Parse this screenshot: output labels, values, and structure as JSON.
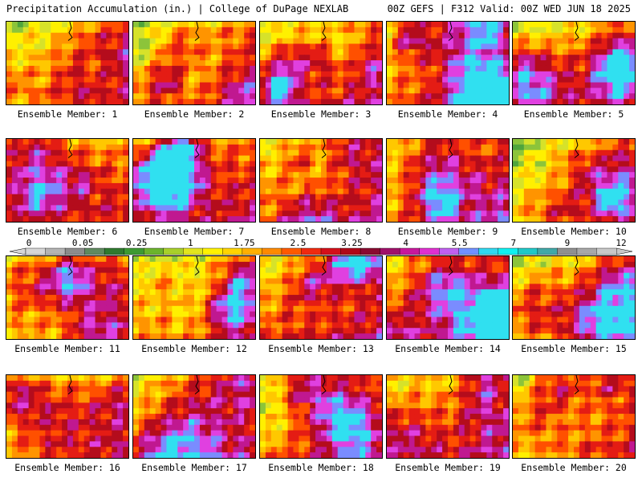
{
  "header": {
    "left": "Precipitation Accumulation (in.) | College of DuPage NEXLAB",
    "right": "00Z GEFS | F312 Valid: 00Z WED JUN 18 2025"
  },
  "members": [
    {
      "label": "Ensemble Member: 1"
    },
    {
      "label": "Ensemble Member: 2"
    },
    {
      "label": "Ensemble Member: 3"
    },
    {
      "label": "Ensemble Member: 4"
    },
    {
      "label": "Ensemble Member: 5"
    },
    {
      "label": "Ensemble Member: 6"
    },
    {
      "label": "Ensemble Member: 7"
    },
    {
      "label": "Ensemble Member: 8"
    },
    {
      "label": "Ensemble Member: 9"
    },
    {
      "label": "Ensemble Member: 10"
    },
    {
      "label": "Ensemble Member: 11"
    },
    {
      "label": "Ensemble Member: 12"
    },
    {
      "label": "Ensemble Member: 13"
    },
    {
      "label": "Ensemble Member: 14"
    },
    {
      "label": "Ensemble Member: 15"
    },
    {
      "label": "Ensemble Member: 16"
    },
    {
      "label": "Ensemble Member: 17"
    },
    {
      "label": "Ensemble Member: 18"
    },
    {
      "label": "Ensemble Member: 19"
    },
    {
      "label": "Ensemble Member: 20"
    }
  ],
  "colorbar": {
    "tick_labels": [
      "0",
      "0.05",
      "0.25",
      "1",
      "1.75",
      "2.5",
      "3.25",
      "4",
      "5.5",
      "7",
      "9",
      "12"
    ],
    "colors": [
      "#d6d6d6",
      "#b4b4b4",
      "#8c8c8c",
      "#5f8a5f",
      "#2f7a2f",
      "#3d9a32",
      "#6bb42c",
      "#a8d02a",
      "#e2e51e",
      "#fff200",
      "#ffd400",
      "#ffb000",
      "#ff8a00",
      "#ff5a00",
      "#f02a10",
      "#d4101a",
      "#b00818",
      "#8a0a30",
      "#a0106a",
      "#c8189c",
      "#e030d0",
      "#c060f0",
      "#7090ff",
      "#30d8f0",
      "#10f0f0",
      "#20c8c8",
      "#40a8a8",
      "#909090",
      "#a8a8a8",
      "#c8c8c8"
    ]
  }
}
